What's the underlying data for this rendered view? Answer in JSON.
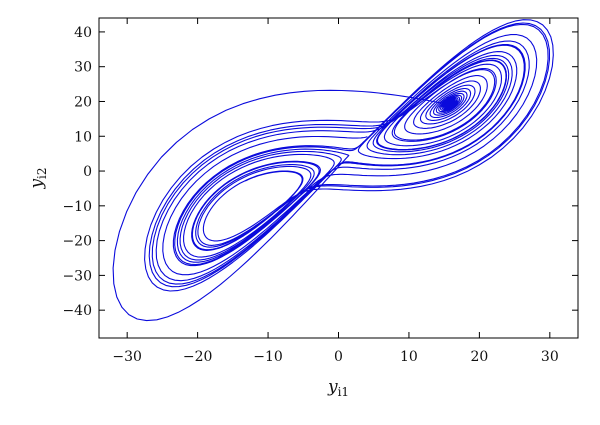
{
  "chart_data": {
    "type": "line",
    "title": "",
    "xlabel": {
      "base": "y",
      "sub": "i1"
    },
    "ylabel": {
      "base": "y",
      "sub": "i2"
    },
    "xlim": [
      -34,
      34
    ],
    "ylim": [
      -48,
      44
    ],
    "xticks": [
      -30,
      -20,
      -10,
      0,
      10,
      20,
      30
    ],
    "yticks": [
      -40,
      -30,
      -20,
      -10,
      0,
      10,
      20,
      30,
      40
    ],
    "xtick_labels": [
      "−30",
      "−20",
      "−10",
      "0",
      "10",
      "20",
      "30"
    ],
    "ytick_labels": [
      "−40",
      "−30",
      "−20",
      "−10",
      "0",
      "10",
      "20",
      "30",
      "40"
    ],
    "grid": false,
    "series": [
      {
        "color": "#0a0adc",
        "shape": "double-scroll chaotic attractor trajectory",
        "right_lobe_center": [
          22,
          17
        ],
        "left_lobe_center": [
          -22,
          -21
        ],
        "x_range": [
          -32,
          30.5
        ],
        "y_range": [
          -43,
          43.5
        ]
      }
    ]
  }
}
